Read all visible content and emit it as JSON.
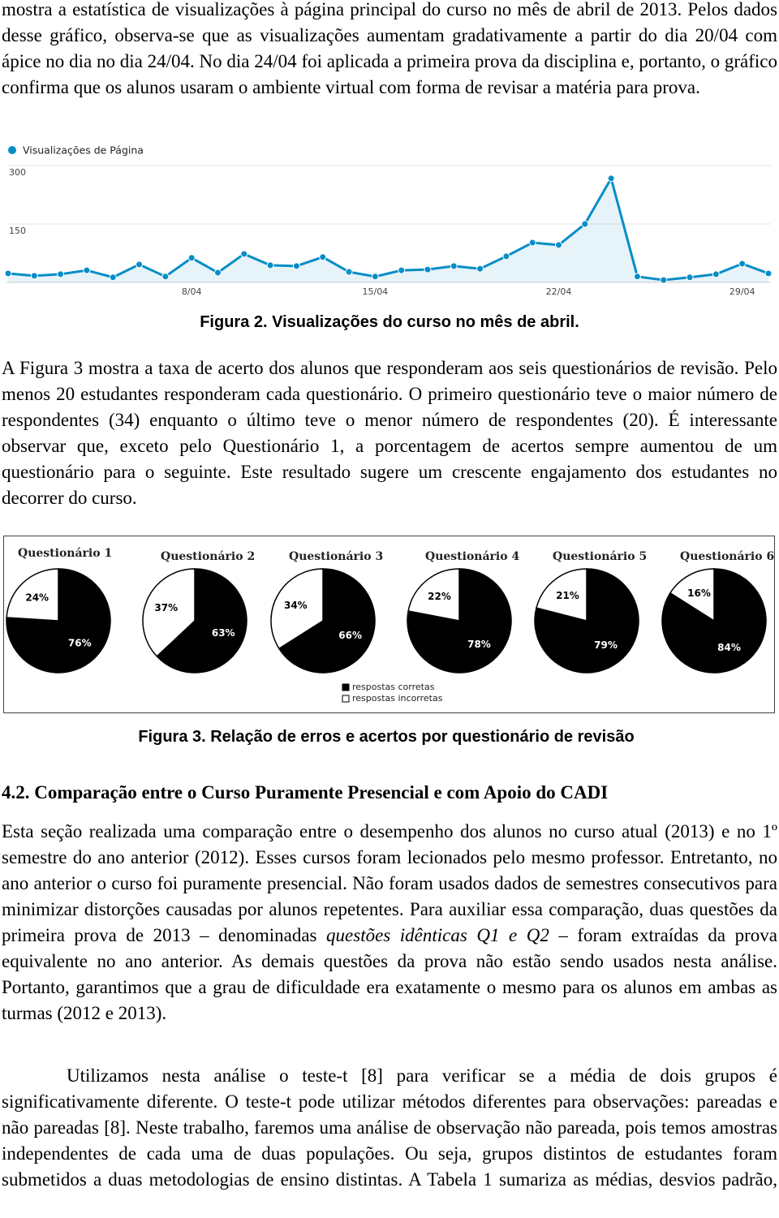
{
  "paragraphs": [
    "mostra a estatística de visualizações à página principal do curso no mês de abril de 2013. Pelos dados desse gráfico, observa-se que as visualizações aumentam gradativamente a partir do dia 20/04 com ápice no dia no dia 24/04. No dia 24/04 foi aplicada a primeira prova da disciplina e, portanto, o gráfico confirma que os alunos usaram o ambiente virtual com forma de revisar a matéria para prova.",
    "A Figura 3 mostra a taxa de acerto dos alunos que responderam aos seis questionários de revisão. Pelo menos 20 estudantes responderam cada questionário. O primeiro questionário teve o maior número de respondentes (34) enquanto o último teve o menor número de respondentes (20). É interessante observar que, exceto pelo Questionário 1, a porcentagem de acertos sempre aumentou de um questionário para o seguinte. Este resultado sugere um crescente engajamento dos estudantes no decorrer do curso.",
    [
      "Esta seção realizada uma comparação entre o desempenho dos alunos no curso atual (2013) e no 1º semestre do ano anterior (2012). Esses cursos foram lecionados pelo mesmo professor. Entretanto, no ano anterior o curso foi puramente presencial. Não foram usados dados de semestres consecutivos para minimizar distorções causadas por alunos repetentes. Para auxiliar essa comparação, duas questões da primeira prova de 2013 – denominadas ",
      "questões idênticas Q1 e Q2",
      " – foram extraídas da prova equivalente no ano anterior. As demais questões da prova não estão sendo usados nesta análise. Portanto, garantimos que a grau de dificuldade era exatamente o mesmo para os alunos em ambas as turmas (2012 e 2013)."
    ],
    "Utilizamos nesta análise o teste-t [8] para verificar se a média de dois grupos é significativamente diferente. O teste-t pode utilizar métodos diferentes para observações: pareadas e não pareadas [8]. Neste trabalho, faremos uma análise de observação não pareada, pois temos amostras independentes de cada uma de duas populações. Ou seja, grupos distintos de estudantes foram submetidos a duas metodologias de ensino distintas. A Tabela 1 sumariza as médias, desvios padrão,"
  ],
  "figure_2_caption": "Figura 2. Visualizações do curso no mês de abril.",
  "figure_3_caption": "Figura 3. Relação de erros e acertos por questionário de revisão",
  "section_heading": "4.2. Comparação entre o Curso Puramente Presencial e com Apoio do CADI",
  "chart_data": [
    {
      "type": "line",
      "categories": [
        null,
        null,
        null,
        null,
        null,
        null,
        null,
        "8/04",
        null,
        null,
        null,
        null,
        null,
        null,
        "15/04",
        null,
        null,
        null,
        null,
        null,
        null,
        "22/04",
        null,
        null,
        null,
        null,
        null,
        null,
        "29/04",
        null
      ],
      "series": [
        {
          "name": "Visualizações de Página",
          "color": "#058dc7",
          "values": [
            23,
            17,
            21,
            31,
            13,
            46,
            15,
            63,
            25,
            73,
            44,
            42,
            65,
            27,
            15,
            31,
            33,
            42,
            35,
            67,
            102,
            96,
            150,
            267,
            15,
            6,
            13,
            21,
            48,
            23
          ]
        }
      ],
      "ylim": [
        0,
        300
      ],
      "yticks": [
        150,
        300
      ],
      "grid": true,
      "area": true
    },
    {
      "type": "pie",
      "labels": [
        "respostas corretas",
        "respostas incorretas"
      ],
      "colors": [
        "#000000",
        "#ffffff"
      ],
      "pies": [
        {
          "title": "Questionário 1",
          "values": [
            76,
            24
          ],
          "value_labels": [
            "76%",
            "24%"
          ]
        },
        {
          "title": "Questionário 2",
          "values": [
            63,
            37
          ],
          "value_labels": [
            "63%",
            "37%"
          ]
        },
        {
          "title": "Questionário 3",
          "values": [
            66,
            34
          ],
          "value_labels": [
            "66%",
            "34%"
          ]
        },
        {
          "title": "Questionário 4",
          "values": [
            78,
            22
          ],
          "value_labels": [
            "78%",
            "22%"
          ]
        },
        {
          "title": "Questionário 5",
          "values": [
            79,
            21
          ],
          "value_labels": [
            "79%",
            "21%"
          ]
        },
        {
          "title": "Questionário 6",
          "values": [
            84,
            16
          ],
          "value_labels": [
            "84%",
            "16%"
          ]
        }
      ]
    }
  ]
}
